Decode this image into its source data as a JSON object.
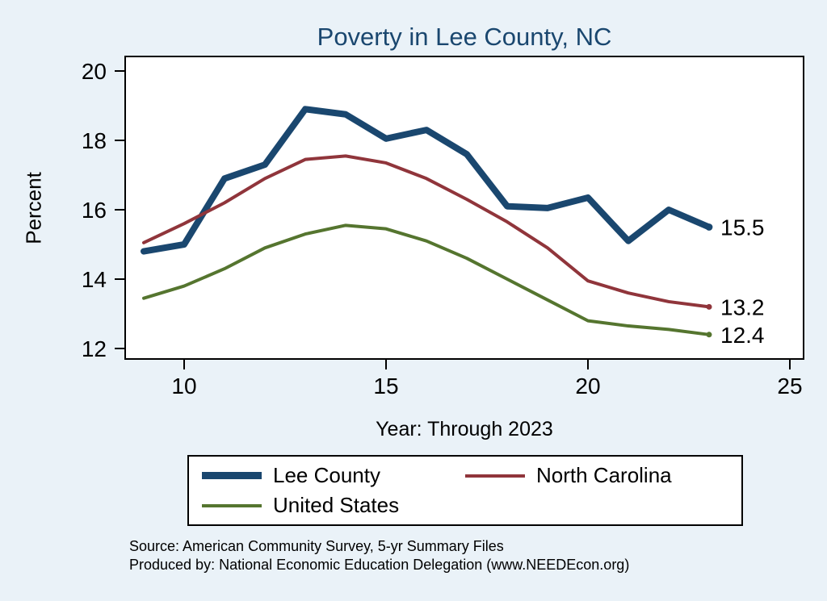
{
  "notes": {
    "source": "Source: American Community Survey, 5-yr Summary Files",
    "produced_by": "Produced by: National Economic Education Delegation (www.NEEDEcon.org)"
  },
  "colors": {
    "background": "#eaf2f8",
    "title": "#1a476f",
    "axis": "#000000",
    "plot_background": "#ffffff"
  },
  "chart_data": {
    "type": "line",
    "title": "Poverty in Lee County, NC",
    "xlabel": "Year: Through 2023",
    "ylabel": "Percent",
    "xlim": [
      8.5,
      25.3
    ],
    "ylim": [
      11.6,
      20.4
    ],
    "xticks": [
      10,
      15,
      20,
      25
    ],
    "yticks": [
      12,
      14,
      16,
      18,
      20
    ],
    "grid": false,
    "legend_position": "bottom",
    "x": [
      9,
      10,
      11,
      12,
      13,
      14,
      15,
      16,
      17,
      18,
      19,
      20,
      21,
      22,
      23
    ],
    "series": [
      {
        "name": "Lee County",
        "color": "#1a476f",
        "width": 8,
        "end_label": "15.5",
        "values": [
          14.8,
          15.0,
          16.9,
          17.3,
          18.9,
          18.75,
          18.05,
          18.3,
          17.6,
          16.1,
          16.05,
          16.35,
          15.1,
          16.0,
          15.5
        ]
      },
      {
        "name": "North Carolina",
        "color": "#90353b",
        "width": 4,
        "end_label": "13.2",
        "values": [
          15.05,
          15.6,
          16.2,
          16.9,
          17.45,
          17.55,
          17.35,
          16.9,
          16.3,
          15.65,
          14.9,
          13.95,
          13.6,
          13.35,
          13.2
        ]
      },
      {
        "name": "United States",
        "color": "#55752f",
        "width": 4,
        "end_label": "12.4",
        "values": [
          13.45,
          13.8,
          14.3,
          14.9,
          15.3,
          15.55,
          15.45,
          15.1,
          14.6,
          14.0,
          13.4,
          12.8,
          12.65,
          12.55,
          12.4
        ]
      }
    ]
  }
}
